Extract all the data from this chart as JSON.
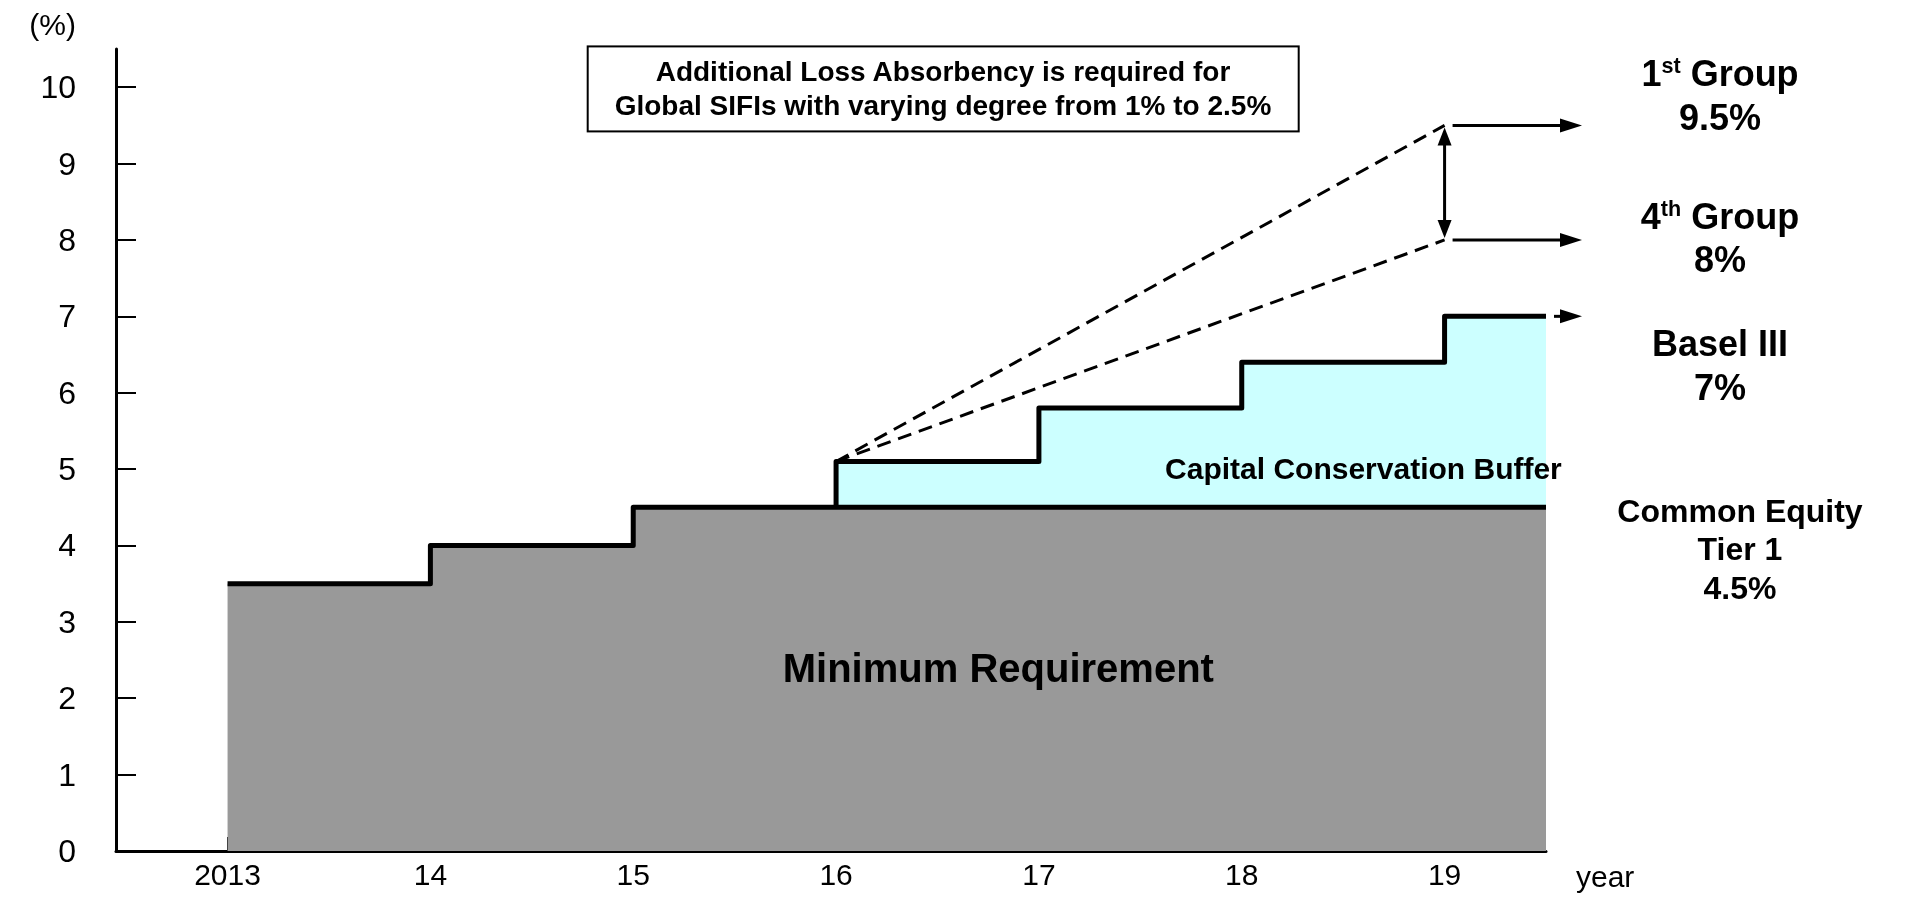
{
  "chart_data": {
    "type": "area",
    "ylabel": "(%)",
    "xlabel": "year",
    "x": [
      2013,
      2014,
      2014,
      2015,
      2015,
      2016,
      2016,
      2017,
      2017,
      2018,
      2018,
      2019,
      2019,
      2019.5
    ],
    "xlim": [
      2012.45,
      2019.5
    ],
    "xticks": [
      {
        "value": 2013,
        "label": "2013"
      },
      {
        "value": 2014,
        "label": "14"
      },
      {
        "value": 2015,
        "label": "15"
      },
      {
        "value": 2016,
        "label": "16"
      },
      {
        "value": 2017,
        "label": "17"
      },
      {
        "value": 2018,
        "label": "18"
      },
      {
        "value": 2019,
        "label": "19"
      }
    ],
    "ylim": [
      0,
      10.5
    ],
    "yticks": [
      0,
      1,
      2,
      3,
      4,
      5,
      6,
      7,
      8,
      9,
      10
    ],
    "stacked": true,
    "grid": false,
    "marker": "none",
    "line_style": "solid",
    "series": [
      {
        "name": "Minimum Requirement",
        "color": "#999999",
        "values": [
          3.5,
          3.5,
          4,
          4,
          4.5,
          4.5,
          4.5,
          4.5,
          4.5,
          4.5,
          4.5,
          4.5,
          4.5,
          4.5
        ]
      },
      {
        "name": "Capital Conservation Buffer",
        "color": "#ccffff",
        "values": [
          null,
          null,
          null,
          null,
          null,
          0,
          0.6,
          0.6,
          1.3,
          1.3,
          1.9,
          1.9,
          2.5,
          2.5
        ]
      },
      {
        "type": "line",
        "color": "#000000",
        "line_style": "dashed",
        "values": [
          null,
          null,
          null,
          null,
          null,
          null,
          5.1,
          null,
          null,
          null,
          null,
          9.5,
          null,
          null
        ]
      },
      {
        "type": "line",
        "color": "#000000",
        "line_style": "dashed",
        "values": [
          null,
          null,
          null,
          null,
          null,
          null,
          5.1,
          null,
          null,
          null,
          null,
          8,
          null,
          null
        ]
      }
    ],
    "annotations": [
      "Additional Loss Absorbency is required for\nGlobal SIFIs with varying degree from 1% to 2.5%",
      "1$^{st}$ Group\n9.5%",
      "4$^{th}$ Group\n8%",
      "Basel III\n7%",
      "Common Equity\nTier 1\n4.5%"
    ]
  }
}
